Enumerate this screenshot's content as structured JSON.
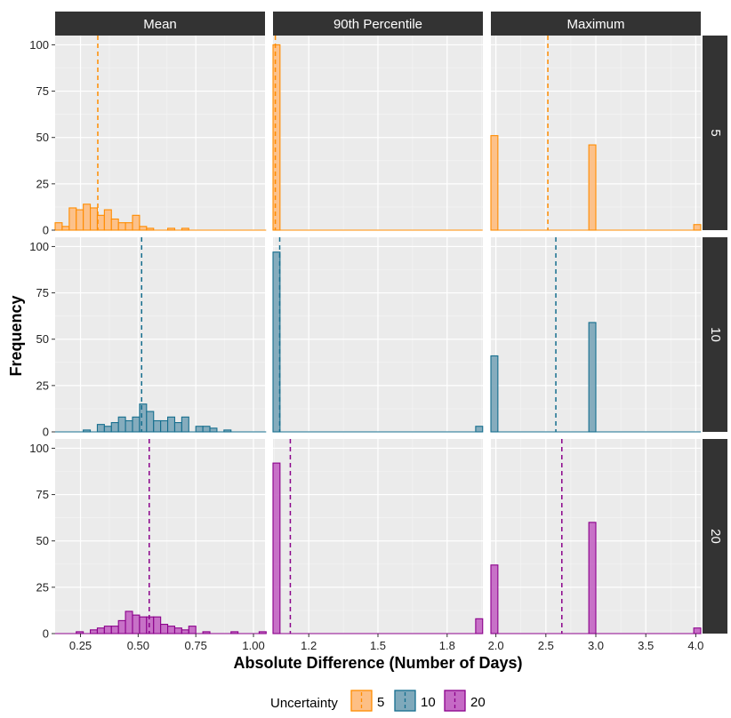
{
  "chart_data": {
    "type": "bar",
    "xlabel": "Absolute Difference (Number of Days)",
    "ylabel": "Frequency",
    "columns": [
      "Mean",
      "90th Percentile",
      "Maximum"
    ],
    "rows": [
      "5",
      "10",
      "20"
    ],
    "y_ticks": [
      0,
      25,
      50,
      75,
      100
    ],
    "ylim": [
      0,
      105
    ],
    "x_axes": [
      {
        "xlim": [
          0.14,
          1.05
        ],
        "ticks": [
          0.25,
          0.5,
          0.75,
          1.0
        ],
        "tick_labels": [
          "0.25",
          "0.50",
          "0.75",
          "1.00"
        ]
      },
      {
        "xlim": [
          1.045,
          1.955
        ],
        "ticks": [
          1.2,
          1.5,
          1.8
        ],
        "tick_labels": [
          "1.2",
          "1.5",
          "1.8"
        ]
      },
      {
        "xlim": [
          1.95,
          4.05
        ],
        "ticks": [
          2.0,
          2.5,
          3.0,
          3.5,
          4.0
        ],
        "tick_labels": [
          "2.0",
          "2.5",
          "3.0",
          "3.5",
          "4.0"
        ]
      }
    ],
    "colors": {
      "5": {
        "fill": "#FDBF85",
        "stroke": "#FF8C00"
      },
      "10": {
        "fill": "#7FA9BB",
        "stroke": "#156E8E"
      },
      "20": {
        "fill": "#C56AC5",
        "stroke": "#8B008B"
      }
    },
    "legend": {
      "title": "Uncertainty",
      "entries": [
        "5",
        "10",
        "20"
      ],
      "position": "bottom"
    },
    "panels": [
      {
        "column": "Mean",
        "row": "5",
        "bin_width": 0.0305,
        "x_start": 0.14,
        "mean_line": 0.325,
        "counts": [
          4,
          2,
          12,
          11,
          14,
          12,
          8,
          11,
          6,
          4,
          4,
          8,
          2,
          1,
          0,
          0,
          1,
          0,
          1,
          0,
          0,
          0,
          0,
          0,
          0,
          0,
          0,
          0,
          0,
          0
        ]
      },
      {
        "column": "90th Percentile",
        "row": "5",
        "bin_width": 0.0303,
        "x_start": 1.045,
        "mean_line": 1.055,
        "counts": [
          100,
          0,
          0,
          0,
          0,
          0,
          0,
          0,
          0,
          0,
          0,
          0,
          0,
          0,
          0,
          0,
          0,
          0,
          0,
          0,
          0,
          0,
          0,
          0,
          0,
          0,
          0,
          0,
          0,
          0
        ]
      },
      {
        "column": "Maximum",
        "row": "5",
        "bin_width": 0.07,
        "x_start": 1.95,
        "mean_line": 2.52,
        "counts": [
          51,
          0,
          0,
          0,
          0,
          0,
          0,
          0,
          0,
          0,
          0,
          0,
          0,
          0,
          46,
          0,
          0,
          0,
          0,
          0,
          0,
          0,
          0,
          0,
          0,
          0,
          0,
          0,
          0,
          3
        ]
      },
      {
        "column": "Mean",
        "row": "10",
        "bin_width": 0.0305,
        "x_start": 0.14,
        "mean_line": 0.515,
        "counts": [
          0,
          0,
          0,
          0,
          1,
          0,
          4,
          3,
          5,
          8,
          6,
          8,
          15,
          11,
          6,
          6,
          8,
          5,
          8,
          0,
          3,
          3,
          2,
          0,
          1,
          0,
          0,
          0,
          0,
          0
        ]
      },
      {
        "column": "90th Percentile",
        "row": "10",
        "bin_width": 0.0303,
        "x_start": 1.045,
        "mean_line": 1.074,
        "counts": [
          97,
          0,
          0,
          0,
          0,
          0,
          0,
          0,
          0,
          0,
          0,
          0,
          0,
          0,
          0,
          0,
          0,
          0,
          0,
          0,
          0,
          0,
          0,
          0,
          0,
          0,
          0,
          0,
          0,
          3
        ]
      },
      {
        "column": "Maximum",
        "row": "10",
        "bin_width": 0.07,
        "x_start": 1.95,
        "mean_line": 2.6,
        "counts": [
          41,
          0,
          0,
          0,
          0,
          0,
          0,
          0,
          0,
          0,
          0,
          0,
          0,
          0,
          59,
          0,
          0,
          0,
          0,
          0,
          0,
          0,
          0,
          0,
          0,
          0,
          0,
          0,
          0,
          0
        ]
      },
      {
        "column": "Mean",
        "row": "20",
        "bin_width": 0.0305,
        "x_start": 0.14,
        "mean_line": 0.548,
        "counts": [
          0,
          0,
          0,
          1,
          0,
          2,
          3,
          4,
          4,
          7,
          12,
          10,
          9,
          9,
          9,
          5,
          4,
          3,
          2,
          4,
          0,
          1,
          0,
          0,
          0,
          1,
          0,
          0,
          0,
          1
        ]
      },
      {
        "column": "90th Percentile",
        "row": "20",
        "bin_width": 0.0303,
        "x_start": 1.045,
        "mean_line": 1.12,
        "counts": [
          92,
          0,
          0,
          0,
          0,
          0,
          0,
          0,
          0,
          0,
          0,
          0,
          0,
          0,
          0,
          0,
          0,
          0,
          0,
          0,
          0,
          0,
          0,
          0,
          0,
          0,
          0,
          0,
          0,
          8
        ]
      },
      {
        "column": "Maximum",
        "row": "20",
        "bin_width": 0.07,
        "x_start": 1.95,
        "mean_line": 2.66,
        "counts": [
          37,
          0,
          0,
          0,
          0,
          0,
          0,
          0,
          0,
          0,
          0,
          0,
          0,
          0,
          60,
          0,
          0,
          0,
          0,
          0,
          0,
          0,
          0,
          0,
          0,
          0,
          0,
          0,
          0,
          3
        ]
      }
    ]
  }
}
